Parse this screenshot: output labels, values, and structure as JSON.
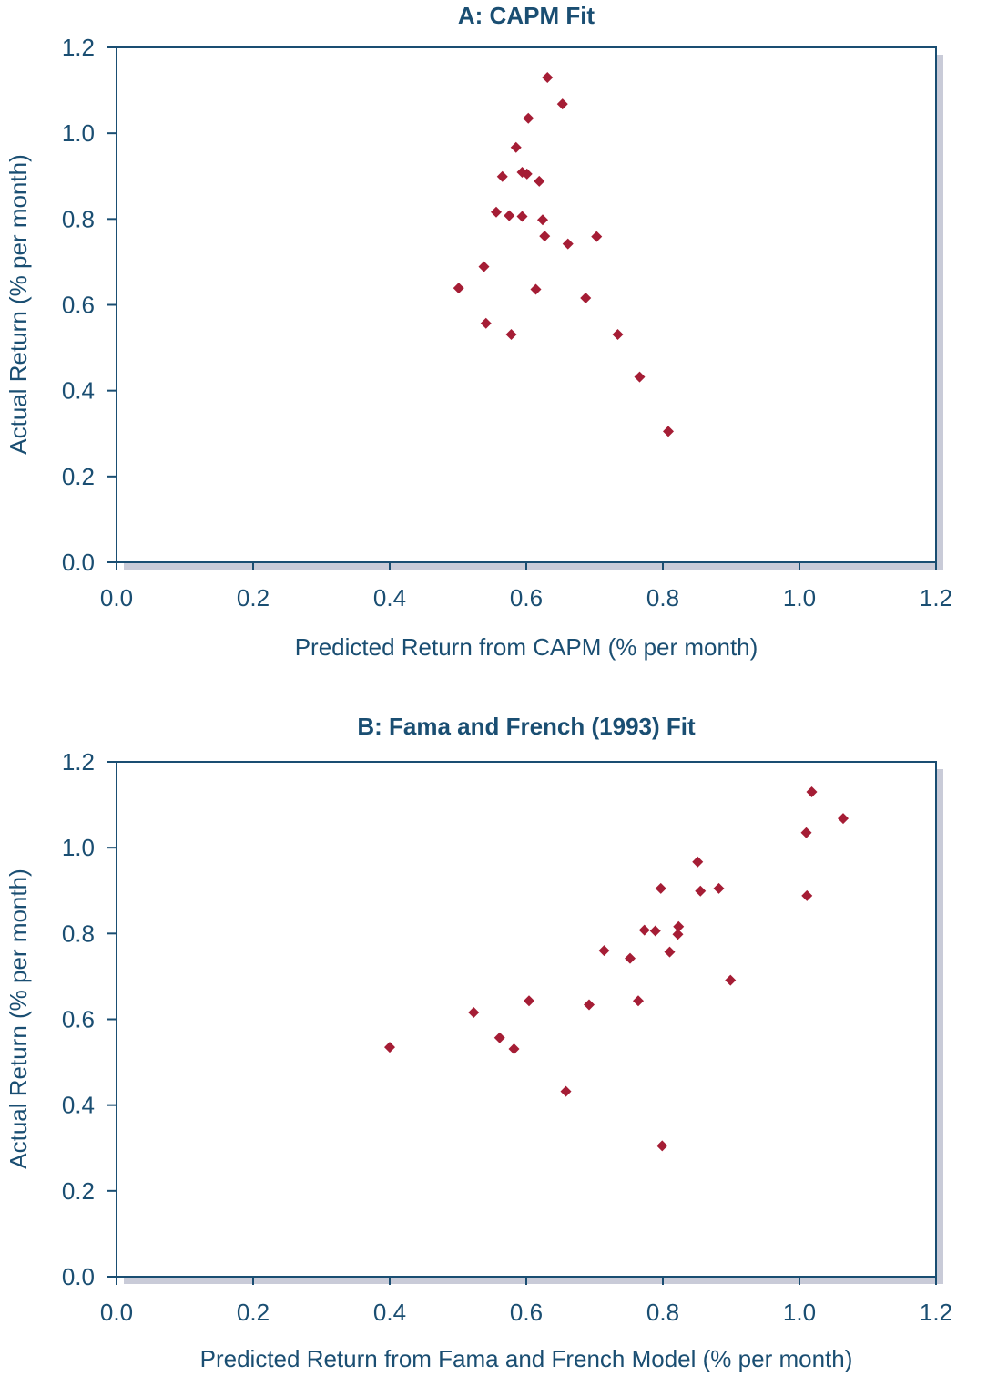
{
  "chart_data": [
    {
      "type": "scatter",
      "title": "A: CAPM Fit",
      "xlabel": "Predicted Return from CAPM (% per month)",
      "ylabel": "Actual Return (% per month)",
      "xlim": [
        0.0,
        1.2
      ],
      "ylim": [
        0.0,
        1.2
      ],
      "xticks": [
        "0.0",
        "0.2",
        "0.4",
        "0.6",
        "0.8",
        "1.0",
        "1.2"
      ],
      "yticks": [
        "0.0",
        "0.2",
        "0.4",
        "0.6",
        "0.8",
        "1.0",
        "1.2"
      ],
      "grid": false,
      "marker_color": "#a51d35",
      "points": [
        {
          "x": 0.631,
          "y": 1.13
        },
        {
          "x": 0.653,
          "y": 1.068
        },
        {
          "x": 0.603,
          "y": 1.035
        },
        {
          "x": 0.585,
          "y": 0.967
        },
        {
          "x": 0.565,
          "y": 0.899
        },
        {
          "x": 0.594,
          "y": 0.909
        },
        {
          "x": 0.601,
          "y": 0.905
        },
        {
          "x": 0.619,
          "y": 0.888
        },
        {
          "x": 0.556,
          "y": 0.816
        },
        {
          "x": 0.575,
          "y": 0.808
        },
        {
          "x": 0.594,
          "y": 0.806
        },
        {
          "x": 0.624,
          "y": 0.798
        },
        {
          "x": 0.627,
          "y": 0.76
        },
        {
          "x": 0.703,
          "y": 0.759
        },
        {
          "x": 0.661,
          "y": 0.742
        },
        {
          "x": 0.538,
          "y": 0.689
        },
        {
          "x": 0.501,
          "y": 0.639
        },
        {
          "x": 0.614,
          "y": 0.636
        },
        {
          "x": 0.687,
          "y": 0.616
        },
        {
          "x": 0.541,
          "y": 0.557
        },
        {
          "x": 0.578,
          "y": 0.531
        },
        {
          "x": 0.734,
          "y": 0.531
        },
        {
          "x": 0.766,
          "y": 0.432
        },
        {
          "x": 0.808,
          "y": 0.305
        }
      ]
    },
    {
      "type": "scatter",
      "title": "B: Fama and French (1993) Fit",
      "xlabel": "Predicted Return from Fama and French Model (% per month)",
      "ylabel": "Actual Return (% per month)",
      "xlim": [
        0.0,
        1.2
      ],
      "ylim": [
        0.0,
        1.2
      ],
      "xticks": [
        "0.0",
        "0.2",
        "0.4",
        "0.6",
        "0.8",
        "1.0",
        "1.2"
      ],
      "yticks": [
        "0.0",
        "0.2",
        "0.4",
        "0.6",
        "0.8",
        "1.0",
        "1.2"
      ],
      "grid": false,
      "marker_color": "#a51d35",
      "points": [
        {
          "x": 1.018,
          "y": 1.13
        },
        {
          "x": 1.064,
          "y": 1.068
        },
        {
          "x": 1.01,
          "y": 1.035
        },
        {
          "x": 0.851,
          "y": 0.967
        },
        {
          "x": 0.855,
          "y": 0.899
        },
        {
          "x": 0.797,
          "y": 0.905
        },
        {
          "x": 0.882,
          "y": 0.905
        },
        {
          "x": 1.011,
          "y": 0.888
        },
        {
          "x": 0.823,
          "y": 0.816
        },
        {
          "x": 0.773,
          "y": 0.808
        },
        {
          "x": 0.789,
          "y": 0.806
        },
        {
          "x": 0.822,
          "y": 0.798
        },
        {
          "x": 0.81,
          "y": 0.757
        },
        {
          "x": 0.714,
          "y": 0.76
        },
        {
          "x": 0.752,
          "y": 0.742
        },
        {
          "x": 0.899,
          "y": 0.691
        },
        {
          "x": 0.604,
          "y": 0.643
        },
        {
          "x": 0.764,
          "y": 0.643
        },
        {
          "x": 0.692,
          "y": 0.634
        },
        {
          "x": 0.523,
          "y": 0.616
        },
        {
          "x": 0.561,
          "y": 0.557
        },
        {
          "x": 0.582,
          "y": 0.531
        },
        {
          "x": 0.4,
          "y": 0.535
        },
        {
          "x": 0.658,
          "y": 0.432
        },
        {
          "x": 0.799,
          "y": 0.305
        }
      ]
    }
  ]
}
